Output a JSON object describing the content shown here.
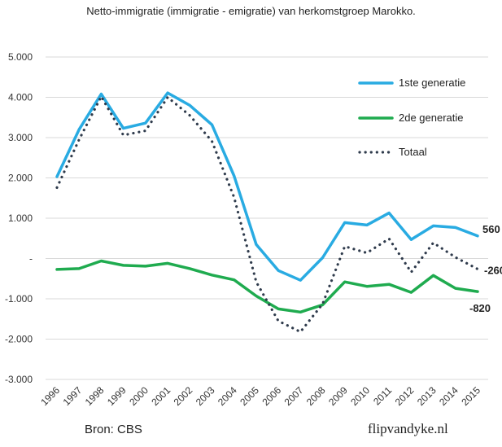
{
  "chart_data": {
    "type": "line",
    "title": "Netto-immigratie (immigratie - emigratie) van herkomstgroep Marokko.",
    "xlabel": "",
    "ylabel": "",
    "categories": [
      "1996",
      "1997",
      "1998",
      "1999",
      "2000",
      "2001",
      "2002",
      "2003",
      "2004",
      "2005",
      "2006",
      "2007",
      "2008",
      "2009",
      "2010",
      "2011",
      "2012",
      "2013",
      "2014",
      "2015"
    ],
    "y_ticks": [
      "5.000",
      "4.000",
      "3.000",
      "2.000",
      "1.000",
      "-",
      "-1.000",
      "-2.000",
      "-3.000"
    ],
    "y_tick_values": [
      5000,
      4000,
      3000,
      2000,
      1000,
      0,
      -1000,
      -2000,
      -3000
    ],
    "ylim": [
      -3000,
      5000
    ],
    "grid": "horizontal",
    "legend_position": "top-right",
    "series": [
      {
        "name": "1ste generatie",
        "color": "#29ABE2",
        "style": "solid",
        "values": [
          2030,
          3200,
          4080,
          3230,
          3360,
          4110,
          3800,
          3320,
          2050,
          350,
          -300,
          -540,
          20,
          890,
          830,
          1130,
          470,
          810,
          770,
          560
        ]
      },
      {
        "name": "2de generatie",
        "color": "#1FAB4F",
        "style": "solid",
        "values": [
          -270,
          -250,
          -60,
          -170,
          -190,
          -120,
          -250,
          -410,
          -530,
          -930,
          -1250,
          -1330,
          -1150,
          -580,
          -690,
          -640,
          -840,
          -420,
          -740,
          -820
        ]
      },
      {
        "name": "Totaal",
        "color": "#2F3B4C",
        "style": "dotted",
        "values": [
          1760,
          2950,
          4020,
          3060,
          3170,
          4000,
          3550,
          2910,
          1520,
          -580,
          -1550,
          -1820,
          -1130,
          300,
          140,
          490,
          -340,
          390,
          30,
          -260
        ]
      }
    ],
    "end_labels": [
      "560",
      "-260",
      "-820"
    ]
  },
  "footer": {
    "source": "Bron: CBS",
    "site": "flipvandyke.nl"
  }
}
